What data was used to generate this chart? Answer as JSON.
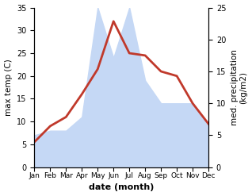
{
  "months": [
    "Jan",
    "Feb",
    "Mar",
    "Apr",
    "May",
    "Jun",
    "Jul",
    "Aug",
    "Sep",
    "Oct",
    "Nov",
    "Dec"
  ],
  "temp": [
    5.5,
    9.0,
    11.0,
    16.0,
    21.5,
    32.0,
    25.0,
    24.5,
    21.0,
    20.0,
    14.0,
    9.5
  ],
  "precip": [
    7.0,
    8.0,
    8.0,
    11.0,
    35.0,
    24.0,
    35.0,
    19.0,
    14.0,
    14.0,
    14.0,
    9.0
  ],
  "temp_ylim": [
    0,
    35
  ],
  "precip_ylim": [
    0,
    25
  ],
  "temp_color": "#c0392b",
  "precip_fill_color": "#c5d8f5",
  "xlabel": "date (month)",
  "ylabel_left": "max temp (C)",
  "ylabel_right": "med. precipitation\n(kg/m2)",
  "temp_linewidth": 2.0,
  "background_color": "#ffffff",
  "left_yticks": [
    0,
    5,
    10,
    15,
    20,
    25,
    30,
    35
  ],
  "right_yticks": [
    0,
    5,
    10,
    15,
    20,
    25
  ]
}
